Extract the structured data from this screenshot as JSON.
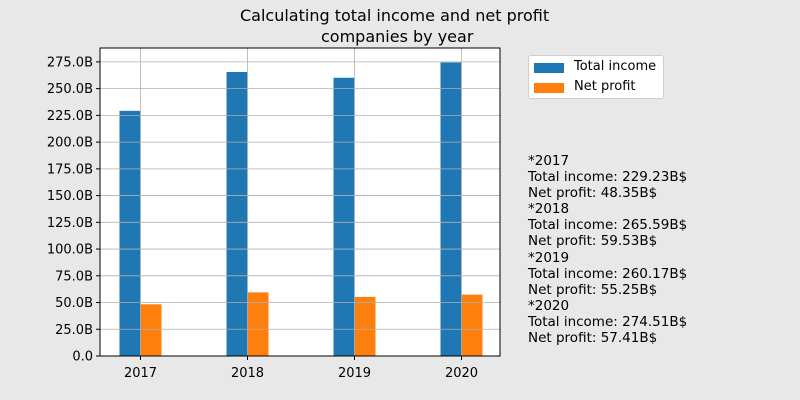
{
  "chart_data": {
    "type": "bar",
    "title": "Calculating total income and net profit companies by year",
    "title_lines": [
      "Calculating total income and net profit",
      "companies by year"
    ],
    "categories": [
      "2017",
      "2018",
      "2019",
      "2020"
    ],
    "series": [
      {
        "name": "Total income",
        "color": "#1f77b4",
        "values": [
          229.23,
          265.59,
          260.17,
          274.51
        ]
      },
      {
        "name": "Net profit",
        "color": "#ff7f0e",
        "values": [
          48.35,
          59.53,
          55.25,
          57.41
        ]
      }
    ],
    "ylim": [
      0,
      288
    ],
    "yticks": [
      0,
      25,
      50,
      75,
      100,
      125,
      150,
      175,
      200,
      225,
      250,
      275
    ],
    "ytick_labels": [
      "0.0",
      "25.0B",
      "50.0B",
      "75.0B",
      "100.0B",
      "125.0B",
      "150.0B",
      "175.0B",
      "200.0B",
      "225.0B",
      "250.0B",
      "275.0B"
    ],
    "grid": true,
    "legend_position": "top-right outside plot",
    "annotations": [
      "*2017",
      "Total income: 229.23B$",
      "Net profit: 48.35B$",
      "*2018",
      "Total income: 265.59B$",
      "Net profit: 59.53B$",
      "*2019",
      "Total income: 260.17B$",
      "Net profit: 55.25B$",
      "*2020",
      "Total income: 274.51B$",
      "Net profit: 57.41B$"
    ]
  }
}
